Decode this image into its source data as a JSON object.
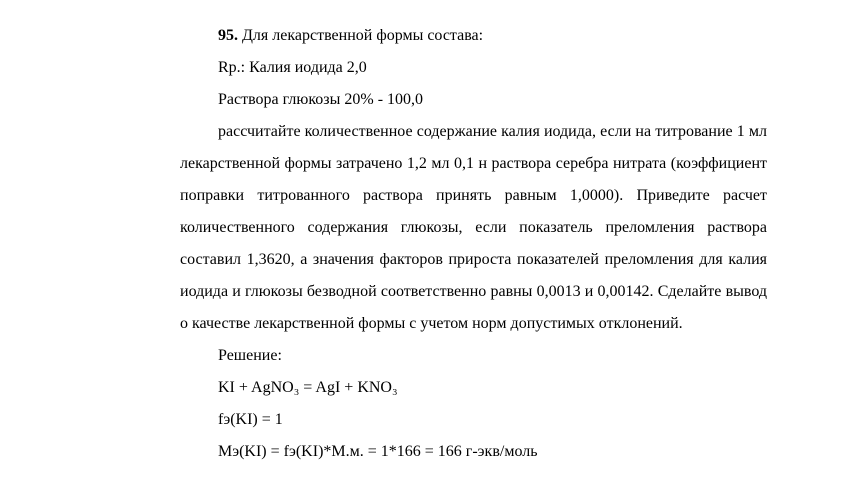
{
  "problem": {
    "number": "95.",
    "intro": " Для лекарственной формы состава:",
    "rp_line": "Rp.: Калия иодида 2,0",
    "solution_line": "Раствора глюкозы 20% - 100,0",
    "body": "рассчитайте количественное содержание калия иодида, если на титрование 1 мл лекарственной формы затрачено 1,2 мл 0,1 н раствора серебра нитрата (коэффициент поправки титрованного раствора принять равным 1,0000). Приведите расчет количественного содержания глюкозы, если показатель преломления раствора составил 1,3620, а значения факторов прироста показателей преломления для калия иодида и глюкозы безводной соответственно равны 0,0013 и 0,00142. Сделайте вывод о качестве лекарственной формы с учетом норм допустимых отклонений.",
    "solution_header": "Решение:",
    "equation": "KI + AgNO₃ = AgI + KNO₃",
    "f_line": "fэ(KI) = 1",
    "m_line": "Mэ(KI) = fэ(KI)*M.м. = 1*166 = 166 г-экв/моль"
  }
}
